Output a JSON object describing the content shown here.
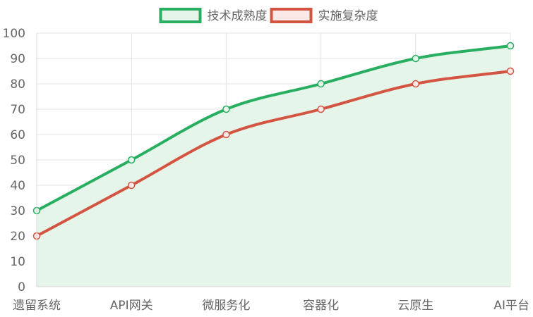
{
  "chart_data": {
    "type": "line",
    "categories": [
      "遗留系统",
      "API网关",
      "微服务化",
      "容器化",
      "云原生",
      "AI平台"
    ],
    "series": [
      {
        "name": "技术成熟度",
        "values": [
          30,
          50,
          70,
          80,
          90,
          95
        ],
        "color": "#27ae60",
        "fill": "#e6f5ea",
        "filled": true
      },
      {
        "name": "实施复杂度",
        "values": [
          20,
          40,
          60,
          70,
          80,
          85
        ],
        "color": "#d35440",
        "fill": "#fbe9e7",
        "filled": false
      }
    ],
    "ylim": [
      0,
      100
    ],
    "yticks": [
      0,
      10,
      20,
      30,
      40,
      50,
      60,
      70,
      80,
      90,
      100
    ],
    "grid": true,
    "legend": "top-center",
    "title": "",
    "xlabel": "",
    "ylabel": ""
  }
}
